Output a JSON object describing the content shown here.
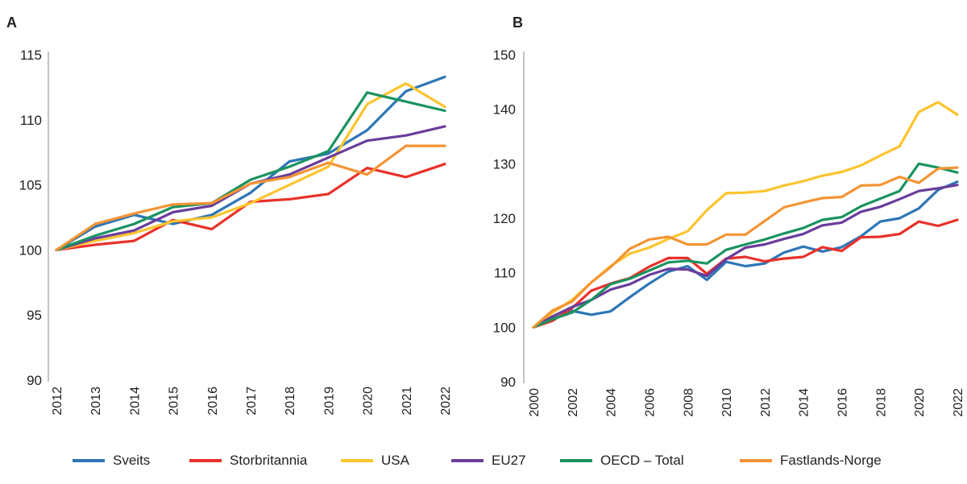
{
  "colors": {
    "Sveits": "#2e75b6",
    "Storbritannia": "#e8312a",
    "USA": "#fcc42d",
    "EU27": "#6a3d9a",
    "OECD – Total": "#1a9360",
    "Fastlands-Norge": "#f39433"
  },
  "legend": [
    "Sveits",
    "Storbritannia",
    "USA",
    "EU27",
    "OECD – Total",
    "Fastlands-Norge"
  ],
  "chart_data": [
    {
      "type": "line",
      "panel": "A",
      "title": "",
      "xlabel": "",
      "ylabel": "",
      "ylim": [
        90,
        115
      ],
      "yticks": [
        90,
        95,
        100,
        105,
        110,
        115
      ],
      "grid": false,
      "legend": "bottom",
      "x": [
        2012,
        2013,
        2014,
        2015,
        2016,
        2017,
        2018,
        2019,
        2020,
        2021,
        2022
      ],
      "series": [
        {
          "name": "Sveits",
          "values": [
            100,
            101.8,
            102.7,
            102.0,
            102.7,
            104.4,
            106.8,
            107.4,
            109.2,
            112.2,
            113.3
          ]
        },
        {
          "name": "Storbritannia",
          "values": [
            100,
            100.4,
            100.7,
            102.3,
            101.6,
            103.7,
            103.9,
            104.3,
            106.3,
            105.6,
            106.6
          ]
        },
        {
          "name": "USA",
          "values": [
            100,
            100.7,
            101.3,
            102.2,
            102.5,
            103.6,
            105.0,
            106.4,
            111.2,
            112.8,
            111.0
          ]
        },
        {
          "name": "EU27",
          "values": [
            100,
            100.9,
            101.5,
            102.9,
            103.4,
            105.1,
            105.8,
            107.1,
            108.4,
            108.8,
            109.5
          ]
        },
        {
          "name": "OECD – Total",
          "values": [
            100,
            101.1,
            102.0,
            103.3,
            103.6,
            105.4,
            106.4,
            107.6,
            112.1,
            111.4,
            110.7
          ]
        },
        {
          "name": "Fastlands-Norge",
          "values": [
            100,
            102.0,
            102.8,
            103.5,
            103.6,
            105.1,
            105.6,
            106.7,
            105.8,
            108.0,
            108.0
          ]
        }
      ]
    },
    {
      "type": "line",
      "panel": "B",
      "title": "",
      "xlabel": "",
      "ylabel": "",
      "ylim": [
        90,
        150
      ],
      "yticks": [
        90,
        100,
        110,
        120,
        130,
        140,
        150
      ],
      "grid": false,
      "legend": "bottom",
      "x": [
        2000,
        2001,
        2002,
        2003,
        2004,
        2005,
        2006,
        2007,
        2008,
        2009,
        2010,
        2011,
        2012,
        2013,
        2014,
        2015,
        2016,
        2017,
        2018,
        2019,
        2020,
        2021,
        2022
      ],
      "xticklabels": [
        2000,
        2002,
        2004,
        2006,
        2008,
        2010,
        2012,
        2014,
        2016,
        2018,
        2020,
        2022
      ],
      "series": [
        {
          "name": "Sveits",
          "values": [
            100,
            101.5,
            103,
            102.3,
            102.9,
            105.5,
            108,
            110.2,
            111.2,
            108.7,
            112,
            111.2,
            111.7,
            113.7,
            114.8,
            113.9,
            114.7,
            116.7,
            119.4,
            120,
            121.8,
            125.2,
            126.7
          ]
        },
        {
          "name": "Storbritannia",
          "values": [
            100,
            101.2,
            103.5,
            106.7,
            108,
            109,
            111.1,
            112.7,
            112.7,
            109.8,
            112.6,
            112.9,
            112.1,
            112.6,
            112.9,
            114.7,
            114,
            116.5,
            116.6,
            117.1,
            119.4,
            118.6,
            119.7
          ]
        },
        {
          "name": "USA",
          "values": [
            100,
            102.7,
            105,
            108.2,
            111.2,
            113.5,
            114.6,
            116.2,
            117.6,
            121.5,
            124.6,
            124.7,
            125,
            126,
            126.8,
            127.8,
            128.5,
            129.7,
            131.5,
            133.2,
            139.5,
            141.3,
            139
          ]
        },
        {
          "name": "EU27",
          "values": [
            100,
            102,
            103.7,
            105,
            106.9,
            107.9,
            109.6,
            110.7,
            110.6,
            109.4,
            112.5,
            114.6,
            115.2,
            116.2,
            117.1,
            118.7,
            119.2,
            121.2,
            122.1,
            123.5,
            125,
            125.5,
            126.1
          ]
        },
        {
          "name": "OECD – Total",
          "values": [
            100,
            101.5,
            102.7,
            105,
            107.9,
            108.9,
            110.4,
            111.9,
            112.2,
            111.7,
            114.2,
            115.2,
            116.1,
            117.2,
            118.2,
            119.7,
            120.2,
            122.2,
            123.6,
            125,
            130,
            129.3,
            128.4
          ]
        },
        {
          "name": "Fastlands-Norge",
          "values": [
            100,
            103.1,
            104.7,
            108.2,
            111,
            114.4,
            116.1,
            116.6,
            115.2,
            115.2,
            117,
            117,
            119.5,
            122,
            122.9,
            123.7,
            123.9,
            126,
            126.1,
            127.6,
            126.5,
            129.1,
            129.3
          ]
        }
      ]
    }
  ]
}
